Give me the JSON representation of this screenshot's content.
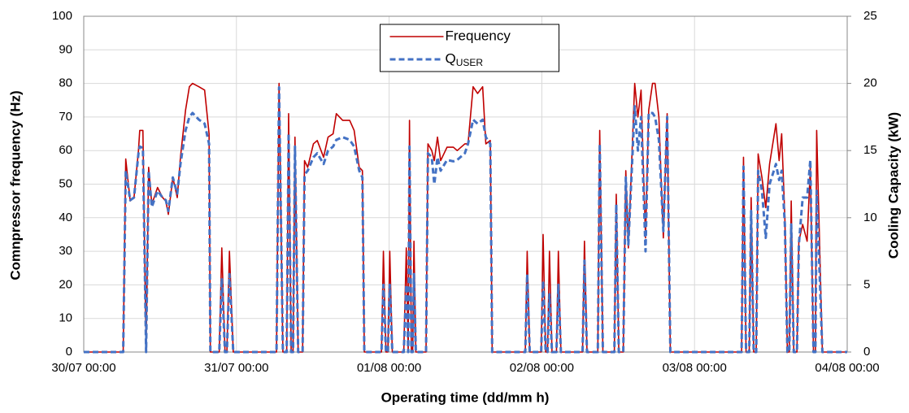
{
  "chart_data": {
    "type": "line",
    "x_label": "Operating time (dd/mm h)",
    "y_label": "Comnpressor frequency (Hz)",
    "y2_label": "Cooling Capacity (kW)",
    "xlim": [
      0,
      120
    ],
    "xticks": [
      {
        "value": 0,
        "label": "30/07 00:00"
      },
      {
        "value": 24,
        "label": "31/07 00:00"
      },
      {
        "value": 48,
        "label": "01/08 00:00"
      },
      {
        "value": 72,
        "label": "02/08 00:00"
      },
      {
        "value": 96,
        "label": "03/08 00:00"
      },
      {
        "value": 120,
        "label": "04/08 00:00"
      }
    ],
    "ylim": [
      0,
      100
    ],
    "yticks": [
      0,
      10,
      20,
      30,
      40,
      50,
      60,
      70,
      80,
      90,
      100
    ],
    "y2lim": [
      0,
      25
    ],
    "y2ticks": [
      0,
      5,
      10,
      15,
      20,
      25
    ],
    "grid": true,
    "legend": "top-center",
    "x": [
      0,
      6.2,
      6.6,
      7.3,
      7.9,
      8.6,
      8.8,
      9.3,
      9.8,
      10.2,
      10.7,
      11.6,
      12.4,
      12.9,
      13.3,
      14.0,
      14.7,
      15.2,
      16.0,
      16.6,
      17.1,
      18.1,
      19.0,
      19.7,
      19.9,
      21.3,
      21.7,
      22.2,
      22.5,
      22.9,
      23.5,
      30.3,
      30.7,
      31.3,
      31.9,
      32.2,
      32.6,
      32.9,
      33.2,
      33.7,
      34.4,
      34.7,
      35.2,
      36.1,
      36.7,
      37.7,
      38.4,
      39.2,
      39.7,
      40.7,
      41.8,
      42.5,
      43.3,
      43.8,
      44.1,
      46.8,
      47.1,
      47.5,
      47.8,
      48.1,
      48.5,
      50.3,
      50.7,
      51.0,
      51.2,
      51.5,
      51.7,
      51.9,
      52.2,
      53.8,
      54.1,
      54.7,
      55.1,
      55.6,
      56.1,
      57.1,
      58.1,
      58.7,
      59.9,
      60.4,
      61.2,
      61.9,
      62.7,
      63.2,
      63.9,
      64.2,
      69.4,
      69.7,
      70.1,
      71.9,
      72.2,
      72.6,
      72.9,
      73.2,
      73.6,
      74.3,
      74.6,
      75.0,
      78.4,
      78.7,
      79.1,
      80.8,
      81.1,
      81.6,
      83.4,
      83.7,
      84.1,
      84.8,
      85.2,
      85.6,
      86.6,
      87.1,
      87.6,
      88.3,
      88.8,
      89.4,
      89.8,
      90.4,
      91.1,
      91.7,
      92.2,
      103.4,
      103.7,
      104.1,
      104.6,
      104.9,
      105.3,
      105.7,
      106.0,
      106.6,
      107.2,
      107.8,
      108.8,
      109.3,
      109.7,
      110.2,
      110.6,
      110.9,
      111.2,
      111.6,
      112.1,
      112.4,
      113.0,
      113.7,
      114.2,
      114.7,
      115.0,
      115.2,
      116.1,
      120
    ],
    "series": [
      {
        "name": "Frequency",
        "color": "#c00000",
        "axis": "y",
        "values": [
          0,
          0,
          57.5,
          45,
          46,
          60,
          66,
          66,
          0,
          55,
          44,
          49,
          46,
          45,
          41,
          52,
          46,
          58,
          72,
          79,
          80,
          79,
          78,
          65,
          0,
          0,
          31,
          0,
          0,
          30,
          0,
          0,
          80,
          0,
          0,
          71,
          0,
          0,
          64,
          0,
          0,
          57,
          55,
          62,
          63,
          58,
          64,
          65,
          71,
          69,
          69,
          66,
          55,
          54,
          0,
          0,
          30,
          0,
          0,
          30,
          0,
          0,
          31,
          0,
          69,
          0,
          0,
          33,
          0,
          0,
          62,
          60,
          57,
          64,
          57,
          61,
          61,
          60,
          62,
          62,
          79,
          77,
          79,
          62,
          63,
          0,
          0,
          30,
          0,
          0,
          35,
          0,
          0,
          30,
          0,
          0,
          30,
          0,
          0,
          33,
          0,
          0,
          66,
          0,
          0,
          47,
          0,
          0,
          54,
          31,
          80,
          70,
          78,
          34,
          72,
          80,
          80,
          70,
          34,
          71,
          0,
          0,
          58,
          0,
          0,
          46,
          0,
          0,
          59,
          52,
          43,
          56,
          68,
          57,
          65,
          40,
          0,
          0,
          45,
          0,
          0,
          33,
          38,
          33,
          55,
          0,
          0,
          66,
          0,
          0
        ]
      },
      {
        "name": "QUSER",
        "color": "#4472c4",
        "axis": "y2",
        "dashed": true,
        "values": [
          0,
          0,
          13.5,
          11.3,
          11.5,
          14.8,
          15.3,
          15.2,
          0,
          13.5,
          10.8,
          12,
          11.5,
          11.3,
          10.5,
          13,
          11.8,
          14,
          16.5,
          17.5,
          17.8,
          17.3,
          17,
          15.5,
          0,
          0,
          5.5,
          0,
          0,
          5.8,
          0,
          0,
          19.7,
          0,
          0,
          16.3,
          0,
          0,
          15.3,
          0,
          0,
          13.2,
          13.5,
          14.5,
          14.8,
          14,
          15,
          15.3,
          15.8,
          16,
          15.8,
          15.3,
          13.5,
          13,
          0,
          0,
          5,
          0,
          0,
          5,
          0,
          0,
          5,
          0,
          15.3,
          0,
          0,
          5.8,
          0,
          0,
          14.8,
          14.5,
          12.5,
          14.5,
          13.5,
          14.3,
          14.2,
          14.3,
          14.8,
          15.5,
          17.3,
          17,
          17.3,
          16,
          15.5,
          0,
          0,
          5.8,
          0,
          0,
          5.3,
          0,
          0,
          4.3,
          0,
          0,
          5,
          0,
          0,
          6.8,
          0,
          0,
          15.5,
          0,
          0,
          11,
          0,
          0,
          13,
          8,
          18.3,
          15,
          17.5,
          7.5,
          17.8,
          17.8,
          17.5,
          15.8,
          9,
          17.5,
          0,
          0,
          13.8,
          0,
          0,
          10.5,
          0,
          0,
          13.5,
          12,
          8.5,
          12.5,
          14,
          12.8,
          13.5,
          9.5,
          0,
          0,
          9.5,
          0,
          0,
          8,
          11.5,
          11.5,
          14.3,
          0,
          0,
          12,
          0,
          0
        ]
      }
    ]
  }
}
